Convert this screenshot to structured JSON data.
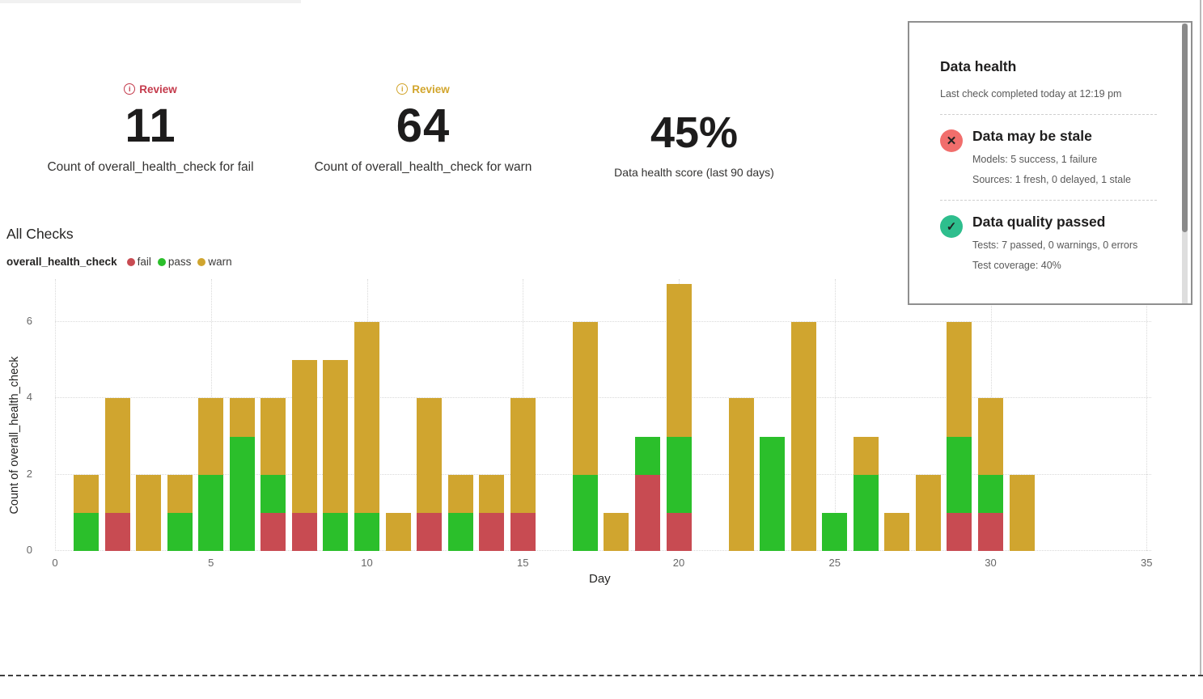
{
  "kpis": [
    {
      "review_label": "Review",
      "review_color": "#c43a4b",
      "value": "11",
      "label": "Count of overall_health_check for fail"
    },
    {
      "review_label": "Review",
      "review_color": "#d2a52c",
      "value": "64",
      "label": "Count of overall_health_check for warn"
    },
    {
      "value": "45%",
      "label": "Data health score (last 90 days)"
    }
  ],
  "section_title": "All Checks",
  "legend": {
    "title": "overall_health_check",
    "items": [
      {
        "label": "fail",
        "color": "#c84b52"
      },
      {
        "label": "pass",
        "color": "#2bbf2b"
      },
      {
        "label": "warn",
        "color": "#d0a52f"
      }
    ]
  },
  "chart_data": {
    "type": "bar",
    "stacked": true,
    "title": "All Checks",
    "xlabel": "Day",
    "ylabel": "Count of overall_health_check",
    "x_ticks": [
      0,
      5,
      10,
      15,
      20,
      25,
      30,
      35
    ],
    "y_ticks": [
      0,
      2,
      4,
      6
    ],
    "xlim": [
      0,
      35.5
    ],
    "ylim": [
      0,
      7.1
    ],
    "grid": true,
    "legend_position": "top-left",
    "stack_order": [
      "fail",
      "pass",
      "warn"
    ],
    "colors": {
      "fail": "#c84b52",
      "pass": "#2bbf2b",
      "warn": "#d0a52f"
    },
    "x": [
      1,
      2,
      3,
      4,
      5,
      6,
      7,
      8,
      9,
      10,
      11,
      12,
      13,
      14,
      15,
      16,
      17,
      18,
      19,
      20,
      21,
      22,
      23,
      24,
      25,
      26,
      27,
      28,
      29,
      30,
      31
    ],
    "series": [
      {
        "name": "fail",
        "values": [
          0,
          1,
          0,
          0,
          0,
          0,
          1,
          1,
          0,
          0,
          0,
          1,
          0,
          1,
          1,
          0,
          0,
          0,
          2,
          1,
          0,
          0,
          0,
          0,
          0,
          0,
          0,
          0,
          1,
          1,
          0
        ]
      },
      {
        "name": "pass",
        "values": [
          1,
          0,
          0,
          1,
          2,
          3,
          1,
          0,
          1,
          1,
          0,
          0,
          1,
          0,
          0,
          0,
          2,
          0,
          1,
          2,
          0,
          0,
          3,
          0,
          1,
          2,
          0,
          0,
          2,
          1,
          0
        ]
      },
      {
        "name": "warn",
        "values": [
          1,
          3,
          2,
          1,
          2,
          1,
          2,
          4,
          4,
          5,
          1,
          3,
          1,
          1,
          3,
          0,
          4,
          1,
          0,
          4,
          0,
          4,
          0,
          6,
          0,
          1,
          1,
          2,
          3,
          2,
          2
        ]
      }
    ]
  },
  "panel": {
    "title": "Data health",
    "subtitle": "Last check completed today at 12:19 pm",
    "sections": [
      {
        "status": "fail",
        "icon": "x",
        "icon_bg": "#f16e6c",
        "icon_glyph": "✕",
        "title": "Data may be stale",
        "lines": [
          "Models: 5 success, 1 failure",
          "Sources: 1 fresh, 0 delayed, 1 stale"
        ]
      },
      {
        "status": "pass",
        "icon": "check",
        "icon_bg": "#2ebe8d",
        "icon_glyph": "✓",
        "title": "Data quality passed",
        "lines": [
          "Tests: 7 passed, 0 warnings, 0 errors",
          "Test coverage: 40%"
        ]
      }
    ]
  }
}
